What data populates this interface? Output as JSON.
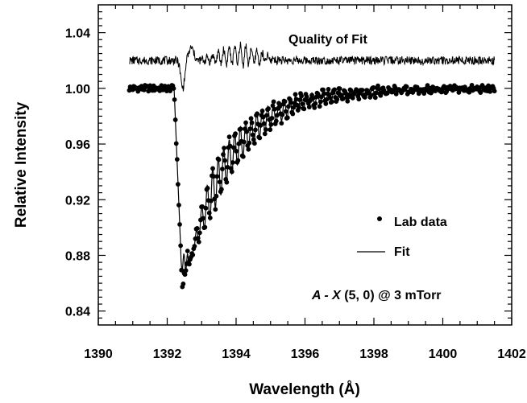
{
  "chart_data": {
    "type": "scatter",
    "xlabel": "Wavelength (Å)",
    "ylabel": "Relative Intensity",
    "xlim": [
      1390,
      1402
    ],
    "ylim": [
      0.83,
      1.06
    ],
    "x_ticks": [
      1390,
      1392,
      1394,
      1396,
      1398,
      1400,
      1402
    ],
    "x_tick_labels": [
      "1390",
      "1392",
      "1394",
      "1396",
      "1398",
      "1400",
      "1402"
    ],
    "y_ticks": [
      0.84,
      0.88,
      0.92,
      0.96,
      1.0,
      1.04
    ],
    "y_tick_labels": [
      "0.84",
      "0.88",
      "0.92",
      "0.96",
      "1.00",
      "1.04"
    ],
    "x_range_data": [
      1390.9,
      1401.5
    ],
    "grid": false,
    "legend_position": "lower-right",
    "legend": [
      {
        "label": "Lab data",
        "marker": "dot"
      },
      {
        "label": "Fit",
        "marker": "line"
      }
    ],
    "annotations": {
      "quality_label": "Quality of Fit",
      "condition_italic": "A - X",
      "condition_rest": " (5, 0) @ 3 mTorr"
    },
    "series": [
      {
        "name": "Lab data",
        "style": "points",
        "description_points": [
          [
            1391.0,
            0.999
          ],
          [
            1392.0,
            1.0
          ],
          [
            1392.3,
            0.94
          ],
          [
            1392.4,
            0.88
          ],
          [
            1392.45,
            0.852
          ],
          [
            1392.6,
            0.876
          ],
          [
            1392.8,
            0.89
          ],
          [
            1393.0,
            0.905
          ],
          [
            1393.5,
            0.93
          ],
          [
            1394.0,
            0.955
          ],
          [
            1394.5,
            0.97
          ],
          [
            1395.0,
            0.98
          ],
          [
            1395.5,
            0.985
          ],
          [
            1396.0,
            0.99
          ],
          [
            1397.0,
            0.996
          ],
          [
            1398.0,
            1.0
          ],
          [
            1399.0,
            1.002
          ],
          [
            1400.0,
            1.001
          ],
          [
            1401.5,
            1.0
          ]
        ]
      },
      {
        "name": "Fit",
        "style": "line"
      },
      {
        "name": "Quality of Fit",
        "style": "line",
        "baseline": 1.02
      }
    ],
    "colors": {
      "data": "#000000",
      "fit": "#000000",
      "axes": "#000000"
    }
  }
}
